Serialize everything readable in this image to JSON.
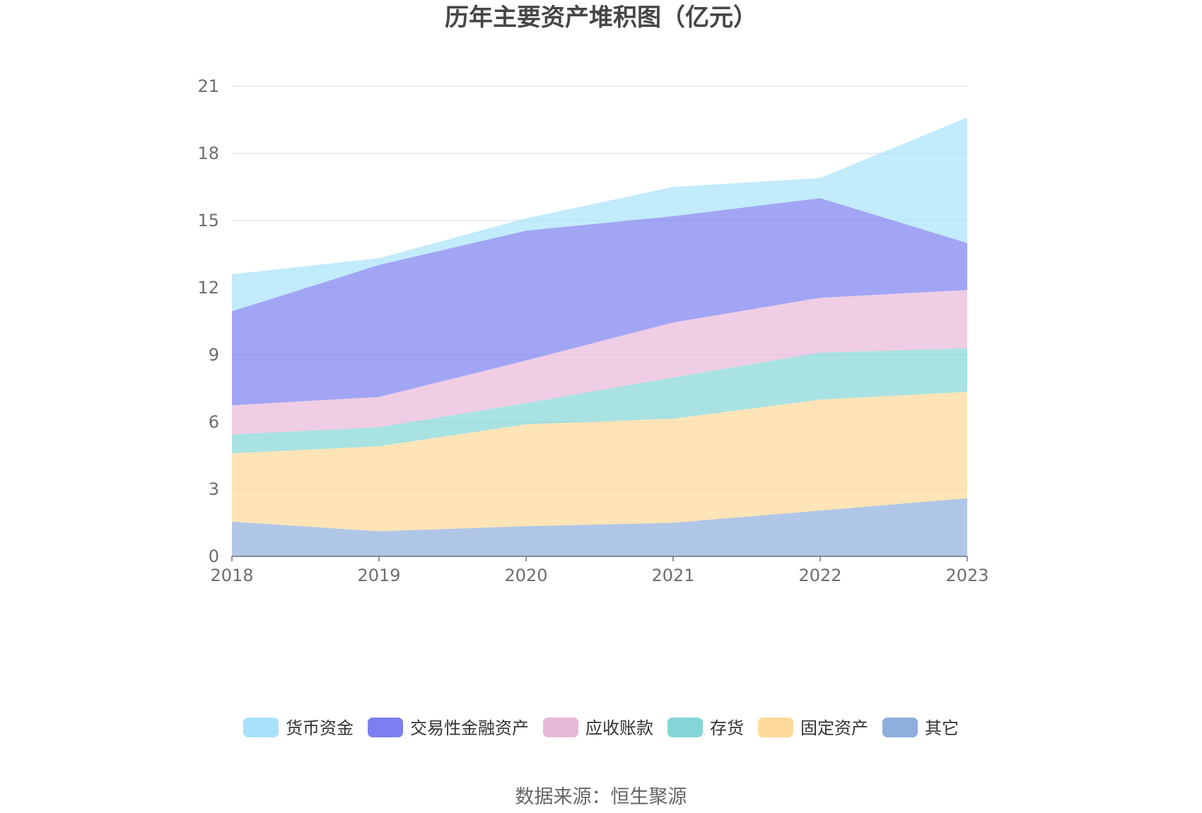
{
  "chart_data": {
    "type": "area",
    "stacked": true,
    "title": "历年主要资产堆积图（亿元）",
    "categories": [
      "2018",
      "2019",
      "2020",
      "2021",
      "2022",
      "2023"
    ],
    "yticks": [
      "0",
      "3",
      "6",
      "9",
      "12",
      "15",
      "18",
      "21"
    ],
    "ylim": [
      0,
      21
    ],
    "grid": true,
    "legend_position": "bottom",
    "series": [
      {
        "name": "其它",
        "color": "#8eaedc",
        "values": [
          1.55,
          1.12,
          1.35,
          1.5,
          2.05,
          2.6
        ]
      },
      {
        "name": "固定资产",
        "color": "#ffd999",
        "values": [
          3.05,
          3.8,
          4.55,
          4.65,
          4.95,
          4.75
        ]
      },
      {
        "name": "存货",
        "color": "#84d6d6",
        "values": [
          0.85,
          0.85,
          0.95,
          1.85,
          2.1,
          1.95
        ]
      },
      {
        "name": "应收账款",
        "color": "#e8b8d8",
        "values": [
          1.3,
          1.35,
          1.9,
          2.45,
          2.45,
          2.6
        ]
      },
      {
        "name": "交易性金融资产",
        "color": "#7b7ff0",
        "values": [
          4.2,
          5.9,
          5.8,
          4.75,
          4.45,
          2.1
        ]
      },
      {
        "name": "货币资金",
        "color": "#a8e2fa",
        "values": [
          1.65,
          0.3,
          0.55,
          1.3,
          0.9,
          5.6
        ]
      }
    ],
    "legend_order": [
      "货币资金",
      "交易性金融资产",
      "应收账款",
      "存货",
      "固定资产",
      "其它"
    ],
    "source": "数据来源：恒生聚源"
  }
}
